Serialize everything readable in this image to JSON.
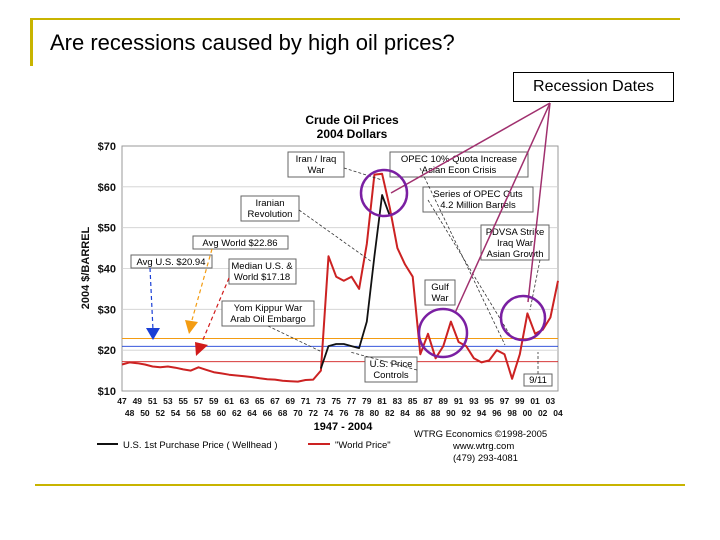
{
  "slide": {
    "title": "Are recessions caused by high oil prices?",
    "callout_label": "Recession Dates"
  },
  "colors": {
    "frame": "#c8b400",
    "world_price": "#cc2222",
    "us_price": "#111111",
    "recession_circle": "#7a1fa2",
    "callout_line": "#a0306e",
    "avg_us_arrow": "#1a3fd6",
    "avg_world_arrow": "#f39c12",
    "median_arrow": "#d11a1a"
  },
  "chart_data": {
    "type": "line",
    "title": "Crude Oil Prices",
    "subtitle": "2004 Dollars",
    "ylabel": "2004 $/BARREL",
    "xlabel": "1947 - 2004",
    "ylim": [
      10,
      70
    ],
    "xlim": [
      1947,
      2004
    ],
    "y_ticks": [
      "$70",
      "$60",
      "$50",
      "$40",
      "$30",
      "$20",
      "$10"
    ],
    "x_ticks_top": [
      "47",
      "49",
      "51",
      "53",
      "55",
      "57",
      "59",
      "61",
      "63",
      "65",
      "67",
      "69",
      "71",
      "73",
      "75",
      "77",
      "79",
      "81",
      "83",
      "85",
      "87",
      "89",
      "91",
      "93",
      "95",
      "97",
      "99",
      "01",
      "03"
    ],
    "x_ticks_bottom": [
      "48",
      "50",
      "52",
      "54",
      "56",
      "58",
      "60",
      "62",
      "64",
      "66",
      "68",
      "70",
      "72",
      "74",
      "76",
      "78",
      "80",
      "82",
      "84",
      "86",
      "88",
      "90",
      "92",
      "94",
      "96",
      "98",
      "00",
      "02",
      "04"
    ],
    "series": [
      {
        "name": "\"World Price\"",
        "color": "#cc2222",
        "points": [
          [
            1947,
            16.5
          ],
          [
            1948,
            17
          ],
          [
            1949,
            16.8
          ],
          [
            1950,
            16.5
          ],
          [
            1951,
            16
          ],
          [
            1952,
            15.8
          ],
          [
            1953,
            16
          ],
          [
            1954,
            15.7
          ],
          [
            1955,
            15.3
          ],
          [
            1956,
            15
          ],
          [
            1957,
            15.8
          ],
          [
            1958,
            15.2
          ],
          [
            1959,
            14.6
          ],
          [
            1960,
            14.3
          ],
          [
            1961,
            14
          ],
          [
            1962,
            13.8
          ],
          [
            1963,
            13.6
          ],
          [
            1964,
            13.4
          ],
          [
            1965,
            13.1
          ],
          [
            1966,
            12.9
          ],
          [
            1967,
            12.8
          ],
          [
            1968,
            12.5
          ],
          [
            1969,
            12.4
          ],
          [
            1970,
            12.3
          ],
          [
            1971,
            12.7
          ],
          [
            1972,
            12.8
          ],
          [
            1973,
            15
          ],
          [
            1974,
            43
          ],
          [
            1975,
            38
          ],
          [
            1976,
            37
          ],
          [
            1977,
            38
          ],
          [
            1978,
            35
          ],
          [
            1979,
            46
          ],
          [
            1980,
            63
          ],
          [
            1981,
            63.2
          ],
          [
            1982,
            55
          ],
          [
            1983,
            45
          ],
          [
            1984,
            41
          ],
          [
            1985,
            38
          ],
          [
            1986,
            19
          ],
          [
            1987,
            24
          ],
          [
            1988,
            18
          ],
          [
            1989,
            21
          ],
          [
            1990,
            27
          ],
          [
            1991,
            22
          ],
          [
            1992,
            21
          ],
          [
            1993,
            18
          ],
          [
            1994,
            17
          ],
          [
            1995,
            17.5
          ],
          [
            1996,
            20
          ],
          [
            1997,
            19
          ],
          [
            1998,
            13
          ],
          [
            1999,
            19
          ],
          [
            2000,
            29
          ],
          [
            2001,
            24
          ],
          [
            2002,
            25
          ],
          [
            2003,
            28
          ],
          [
            2004,
            37
          ]
        ]
      },
      {
        "name": "U.S. 1st Purchase Price ( Wellhead )",
        "color": "#111111",
        "points": [
          [
            1973,
            15.5
          ],
          [
            1974,
            21
          ],
          [
            1975,
            21.5
          ],
          [
            1976,
            21.5
          ],
          [
            1977,
            21
          ],
          [
            1978,
            20.5
          ],
          [
            1979,
            27
          ],
          [
            1980,
            43
          ],
          [
            1981,
            58
          ],
          [
            1982,
            53
          ]
        ]
      }
    ],
    "reference_lines": [
      {
        "label": "Avg U.S. $20.94",
        "value": 20.94,
        "color": "#1a3fd6"
      },
      {
        "label": "Avg World $22.86",
        "value": 22.86,
        "color": "#f39c12"
      },
      {
        "label": "Median U.S. & World $17.18",
        "value": 17.18,
        "color": "#d11a1a"
      }
    ],
    "annotations": [
      "Iran / Iraq War",
      "OPEC 10% Quota Increase Asian Econ Crisis",
      "Iranian Revolution",
      "Series of OPEC Cuts 4.2 Million Barrels",
      "Avg World $22.86",
      "PDVSA Strike Iraq War Asian Growth",
      "Avg U.S. $20.94",
      "Median U.S. & World $17.18",
      "Gulf War",
      "Yom Kippur War Arab Oil Embargo",
      "U.S. Price Controls",
      "9/11"
    ],
    "legend": {
      "us": "U.S. 1st Purchase Price ( Wellhead )",
      "world": "\"World Price\""
    },
    "source": {
      "org": "WTRG Economics",
      "copyright": "©1998-2005",
      "url": "www.wtrg.com",
      "phone": "(479) 293-4081"
    }
  }
}
